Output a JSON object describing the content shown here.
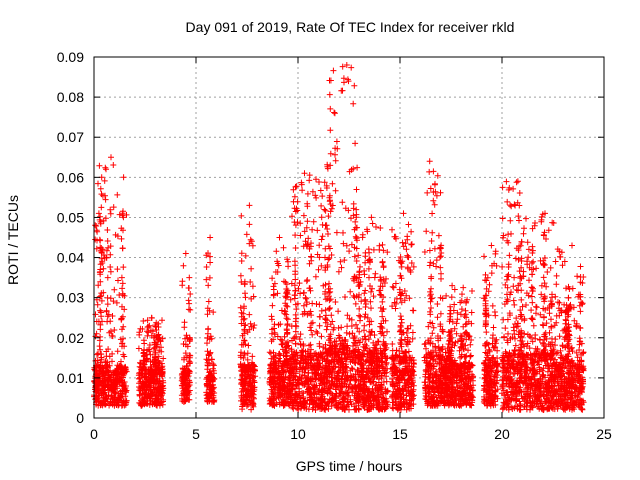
{
  "chart_data": {
    "type": "scatter",
    "title": "Day 091 of 2019, Rate Of TEC Index for receiver rkld",
    "xlabel": "GPS time / hours",
    "ylabel": "ROTI / TECUs",
    "xlim": [
      0,
      25
    ],
    "ylim": [
      0,
      0.09
    ],
    "x_ticks": [
      "0",
      "5",
      "10",
      "15",
      "20",
      "25"
    ],
    "y_ticks": [
      "0",
      "0.01",
      "0.02",
      "0.03",
      "0.04",
      "0.05",
      "0.06",
      "0.07",
      "0.08",
      "0.09"
    ],
    "grid": true,
    "legend": "none",
    "marker": "plus",
    "color": "#ff0000",
    "series": [
      {
        "clusters": [
          {
            "x": [
              0.0,
              1.6
            ],
            "base": [
              0.003,
              0.013
            ],
            "peak": 0.065
          },
          {
            "x": [
              2.2,
              3.4
            ],
            "base": [
              0.003,
              0.012
            ],
            "peak": 0.025
          },
          {
            "x": [
              4.3,
              4.7
            ],
            "base": [
              0.004,
              0.012
            ],
            "peak": 0.041
          },
          {
            "x": [
              5.5,
              5.9
            ],
            "base": [
              0.004,
              0.012
            ],
            "peak": 0.045
          },
          {
            "x": [
              7.2,
              7.9
            ],
            "base": [
              0.002,
              0.013
            ],
            "peak": 0.053
          },
          {
            "x": [
              8.6,
              9.7
            ],
            "base": [
              0.003,
              0.014
            ],
            "peak": 0.045
          },
          {
            "x": [
              9.7,
              11.4
            ],
            "base": [
              0.002,
              0.016
            ],
            "peak": 0.061
          },
          {
            "x": [
              11.4,
              12.9
            ],
            "base": [
              0.002,
              0.018
            ],
            "peak": 0.088
          },
          {
            "x": [
              12.9,
              14.4
            ],
            "base": [
              0.002,
              0.016
            ],
            "peak": 0.05
          },
          {
            "x": [
              14.6,
              15.7
            ],
            "base": [
              0.002,
              0.015
            ],
            "peak": 0.051
          },
          {
            "x": [
              16.2,
              17.0
            ],
            "base": [
              0.003,
              0.016
            ],
            "peak": 0.064
          },
          {
            "x": [
              17.0,
              18.6
            ],
            "base": [
              0.003,
              0.013
            ],
            "peak": 0.033
          },
          {
            "x": [
              19.1,
              19.8
            ],
            "base": [
              0.003,
              0.014
            ],
            "peak": 0.043
          },
          {
            "x": [
              20.0,
              21.2
            ],
            "base": [
              0.002,
              0.016
            ],
            "peak": 0.059
          },
          {
            "x": [
              21.2,
              22.6
            ],
            "base": [
              0.002,
              0.016
            ],
            "peak": 0.051
          },
          {
            "x": [
              22.6,
              24.0
            ],
            "base": [
              0.002,
              0.014
            ],
            "peak": 0.043
          }
        ]
      }
    ]
  }
}
